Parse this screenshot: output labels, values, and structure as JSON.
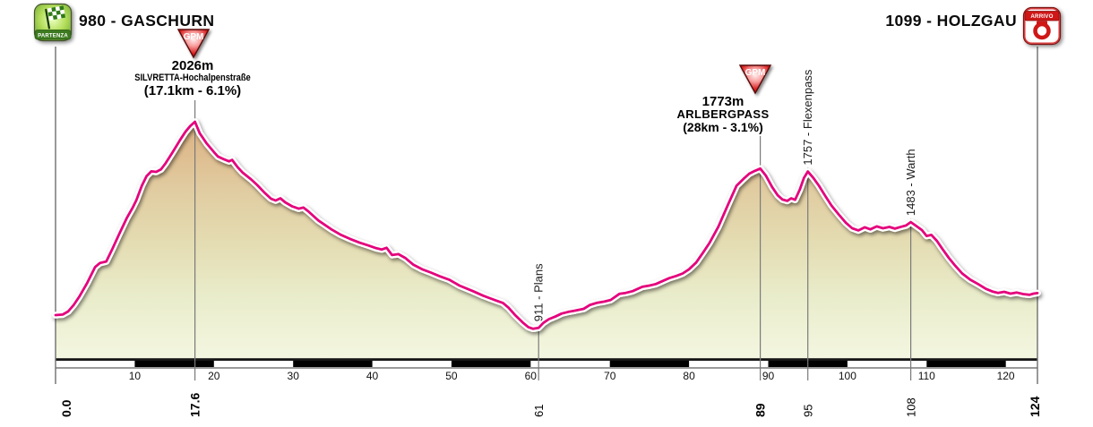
{
  "header": {
    "start": {
      "elevation_label": "980 - GASCHURN",
      "icon_label": "PARTENZA"
    },
    "finish": {
      "elevation_label": "1099 - HOLZGAU",
      "icon_label": "ARRIVO"
    }
  },
  "gpm_markers": [
    {
      "icon_label": "GPM",
      "km": 17.6,
      "elevation": "2026m",
      "name": "SILVRETTA-Hochalpenstraße",
      "detail": "(17.1km - 6.1%)"
    },
    {
      "icon_label": "GPM",
      "km": 89,
      "elevation": "1773m",
      "name": "ARLBERGPASS",
      "detail": "(28km - 3.1%)"
    }
  ],
  "chart_data": {
    "type": "area",
    "x_unit": "km",
    "y_unit": "m",
    "x_range": [
      0,
      124
    ],
    "y_range": [
      733,
      2152
    ],
    "grid": false,
    "x_ticks": [
      10,
      20,
      30,
      40,
      50,
      60,
      70,
      80,
      90,
      100,
      110,
      120
    ],
    "km_labels": [
      {
        "km": 0,
        "label": "0.0",
        "bold": true
      },
      {
        "km": 17.6,
        "label": "17.6",
        "bold": true
      },
      {
        "km": 61,
        "label": "61",
        "bold": false
      },
      {
        "km": 89,
        "label": "89",
        "bold": true
      },
      {
        "km": 95,
        "label": "95",
        "bold": false
      },
      {
        "km": 108,
        "label": "108",
        "bold": false
      },
      {
        "km": 124,
        "label": "124",
        "bold": true
      }
    ],
    "point_labels": [
      {
        "km": 61,
        "label": "911 - Plans"
      },
      {
        "km": 95,
        "label": "1757 - Flexenpass"
      },
      {
        "km": 108,
        "label": "1483 - Warth"
      }
    ],
    "colors": {
      "profile_line": "#e4007c",
      "profile_casing": "#ffffff",
      "area_gradient": [
        "#d8a878",
        "#ddb88a",
        "#e1cda2",
        "#e4dcb2",
        "#e9ecca",
        "#f4f7e1"
      ],
      "guide_line": "#7a7a7a",
      "spine": "#6e6e6e",
      "axis_bar_black": "#000000",
      "axis_bar_gray": "#9a9a9a",
      "baseline": "#161616",
      "text": "#111111",
      "start_icon_green": "#5f9a28",
      "finish_icon_red": "#d01818"
    },
    "series": [
      {
        "name": "elevation",
        "points": [
          [
            0,
            980
          ],
          [
            0.9,
            983
          ],
          [
            1.6,
            1000
          ],
          [
            2.3,
            1035
          ],
          [
            3,
            1080
          ],
          [
            4,
            1155
          ],
          [
            5,
            1240
          ],
          [
            5.6,
            1262
          ],
          [
            6.4,
            1270
          ],
          [
            7.2,
            1340
          ],
          [
            8,
            1415
          ],
          [
            9,
            1505
          ],
          [
            9.7,
            1558
          ],
          [
            10.2,
            1602
          ],
          [
            10.9,
            1680
          ],
          [
            11.5,
            1732
          ],
          [
            12.1,
            1758
          ],
          [
            12.7,
            1755
          ],
          [
            13.3,
            1768
          ],
          [
            13.9,
            1802
          ],
          [
            14.8,
            1862
          ],
          [
            15.7,
            1926
          ],
          [
            16.4,
            1972
          ],
          [
            17,
            2003
          ],
          [
            17.6,
            2026
          ],
          [
            18.2,
            1964
          ],
          [
            19.1,
            1908
          ],
          [
            20,
            1862
          ],
          [
            20.5,
            1838
          ],
          [
            21.3,
            1822
          ],
          [
            21.9,
            1812
          ],
          [
            22.3,
            1820
          ],
          [
            23,
            1780
          ],
          [
            23.6,
            1752
          ],
          [
            24.7,
            1714
          ],
          [
            25.5,
            1682
          ],
          [
            26.4,
            1642
          ],
          [
            27.2,
            1610
          ],
          [
            27.8,
            1600
          ],
          [
            28.4,
            1612
          ],
          [
            29,
            1590
          ],
          [
            29.9,
            1568
          ],
          [
            30.7,
            1556
          ],
          [
            31.3,
            1562
          ],
          [
            31.9,
            1542
          ],
          [
            33.2,
            1492
          ],
          [
            34.9,
            1442
          ],
          [
            36,
            1415
          ],
          [
            37.2,
            1392
          ],
          [
            38.4,
            1372
          ],
          [
            39.5,
            1357
          ],
          [
            40.5,
            1342
          ],
          [
            41.2,
            1335
          ],
          [
            41.8,
            1344
          ],
          [
            42.5,
            1305
          ],
          [
            43.3,
            1310
          ],
          [
            44.2,
            1288
          ],
          [
            45.2,
            1252
          ],
          [
            46.3,
            1228
          ],
          [
            47.4,
            1210
          ],
          [
            48.5,
            1190
          ],
          [
            49.7,
            1172
          ],
          [
            51,
            1140
          ],
          [
            52.7,
            1110
          ],
          [
            54,
            1085
          ],
          [
            54.8,
            1072
          ],
          [
            55.7,
            1058
          ],
          [
            56.5,
            1046
          ],
          [
            57.2,
            1020
          ],
          [
            58,
            982
          ],
          [
            59,
            940
          ],
          [
            59.7,
            915
          ],
          [
            60.3,
            906
          ],
          [
            61,
            911
          ],
          [
            61.6,
            938
          ],
          [
            62.3,
            958
          ],
          [
            63.1,
            972
          ],
          [
            63.9,
            988
          ],
          [
            64.8,
            998
          ],
          [
            65.6,
            1004
          ],
          [
            66.7,
            1014
          ],
          [
            67.5,
            1035
          ],
          [
            68.4,
            1047
          ],
          [
            69.3,
            1053
          ],
          [
            70.1,
            1062
          ],
          [
            71.2,
            1095
          ],
          [
            72,
            1100
          ],
          [
            72.9,
            1110
          ],
          [
            74.1,
            1133
          ],
          [
            75,
            1140
          ],
          [
            75.8,
            1148
          ],
          [
            76.7,
            1165
          ],
          [
            77.5,
            1180
          ],
          [
            78.4,
            1192
          ],
          [
            79.2,
            1205
          ],
          [
            80,
            1228
          ],
          [
            80.9,
            1265
          ],
          [
            81.8,
            1320
          ],
          [
            82.6,
            1372
          ],
          [
            83.7,
            1458
          ],
          [
            84.9,
            1575
          ],
          [
            86,
            1680
          ],
          [
            87,
            1722
          ],
          [
            87.6,
            1745
          ],
          [
            88.3,
            1760
          ],
          [
            89,
            1773
          ],
          [
            89.7,
            1735
          ],
          [
            90.5,
            1672
          ],
          [
            91.2,
            1628
          ],
          [
            91.8,
            1605
          ],
          [
            92.4,
            1598
          ],
          [
            92.9,
            1612
          ],
          [
            93.4,
            1604
          ],
          [
            94,
            1660
          ],
          [
            94.5,
            1722
          ],
          [
            95,
            1757
          ],
          [
            95.7,
            1722
          ],
          [
            96.4,
            1680
          ],
          [
            97.2,
            1625
          ],
          [
            98,
            1572
          ],
          [
            98.9,
            1525
          ],
          [
            99.8,
            1480
          ],
          [
            100.6,
            1450
          ],
          [
            101.4,
            1438
          ],
          [
            102.2,
            1455
          ],
          [
            102.9,
            1444
          ],
          [
            103.7,
            1460
          ],
          [
            104.5,
            1450
          ],
          [
            105.3,
            1457
          ],
          [
            106,
            1448
          ],
          [
            106.8,
            1458
          ],
          [
            107.4,
            1465
          ],
          [
            108,
            1483
          ],
          [
            108.7,
            1462
          ],
          [
            109.4,
            1440
          ],
          [
            110,
            1408
          ],
          [
            110.6,
            1414
          ],
          [
            111.3,
            1382
          ],
          [
            112,
            1338
          ],
          [
            112.8,
            1290
          ],
          [
            113.6,
            1248
          ],
          [
            114.5,
            1205
          ],
          [
            115.5,
            1172
          ],
          [
            116.5,
            1148
          ],
          [
            117.5,
            1122
          ],
          [
            118.3,
            1108
          ],
          [
            119,
            1100
          ],
          [
            119.8,
            1106
          ],
          [
            120.6,
            1096
          ],
          [
            121.4,
            1102
          ],
          [
            122.2,
            1094
          ],
          [
            123,
            1090
          ],
          [
            123.5,
            1096
          ],
          [
            124,
            1099
          ]
        ]
      }
    ]
  }
}
